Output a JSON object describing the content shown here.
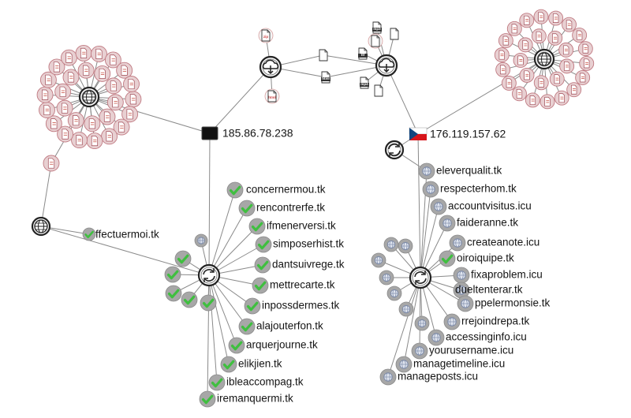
{
  "colors": {
    "edge": "#8a8a8a",
    "hub_stroke": "#222222",
    "file_cluster_fill": "#e8d0d2",
    "file_cluster_stroke": "#c07a82",
    "domain_node_fill": "#a7a7a7",
    "check_fill": "#3fbf3f",
    "globe_fill": "#7c8aa8",
    "czech_blue": "#11457e",
    "czech_red": "#d7141a"
  },
  "ip_nodes": {
    "left": {
      "label": "185.86.78.238",
      "flag": "black-flag"
    },
    "right": {
      "label": "176.119.157.62",
      "flag": "czech-flag"
    }
  },
  "file_icons": [
    "zip",
    "html",
    "mp3",
    "ttf",
    "html",
    "mp4"
  ],
  "left_domains": [
    "concernermou.tk",
    "rencontrerfe.tk",
    "ifmenerversi.tk",
    "simposerhist.tk",
    "dantsuivrege.tk",
    "mettrecarte.tk",
    "inpossdermes.tk",
    "alajouterfon.tk",
    "arquerjourne.tk",
    "elikjien.tk",
    "ibleaccompag.tk",
    "iremanquermi.tk"
  ],
  "far_left_domain": "ffectuermoi.tk",
  "right_domains": [
    "eleverqualit.tk",
    "respecterhom.tk",
    "accountvisitus.icu",
    "faideranne.tk",
    "createanote.icu",
    "oiroiquipe.tk",
    "fixaproblem.icu",
    "dueltenterar.tk",
    "ppelermonsie.tk",
    "rrejoindrepa.tk",
    "accessinginfo.icu",
    "yourusername.icu",
    "managetimeline.icu",
    "manageposts.icu"
  ]
}
